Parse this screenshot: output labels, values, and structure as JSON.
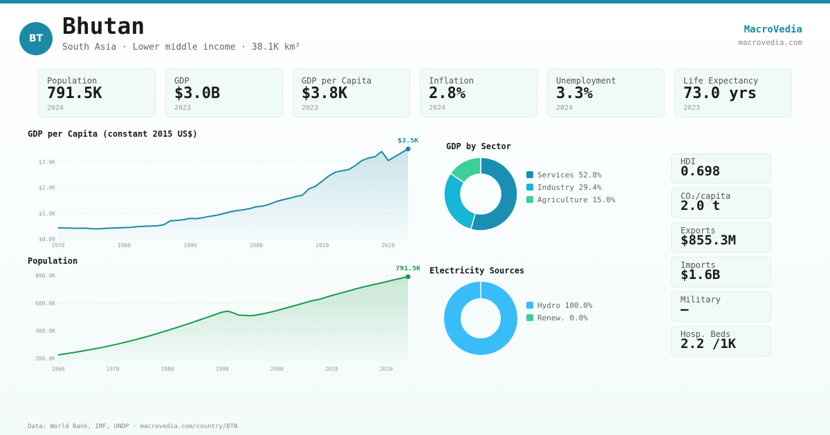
{
  "header": {
    "badge": "BT",
    "country": "Bhutan",
    "subtitle": "South Asia · Lower middle income · 38.1K km²",
    "brand": "MacroVedia",
    "brand_url": "macrovedia.com"
  },
  "stats": [
    {
      "label": "Population",
      "value": "791.5K",
      "year": "2024"
    },
    {
      "label": "GDP",
      "value": "$3.0B",
      "year": "2023"
    },
    {
      "label": "GDP per Capita",
      "value": "$3.8K",
      "year": "2023"
    },
    {
      "label": "Inflation",
      "value": "2.8%",
      "year": "2024"
    },
    {
      "label": "Unemployment",
      "value": "3.3%",
      "year": "2024"
    },
    {
      "label": "Life Expectancy",
      "value": "73.0 yrs",
      "year": "2023"
    }
  ],
  "side_stats": [
    {
      "label": "HDI",
      "value": "0.698"
    },
    {
      "label": "CO₂/capita",
      "value": "2.0 t"
    },
    {
      "label": "Exports",
      "value": "$855.3M"
    },
    {
      "label": "Imports",
      "value": "$1.6B"
    },
    {
      "label": "Military",
      "value": "—"
    },
    {
      "label": "Hosp. Beds",
      "value": "2.2 /1K"
    }
  ],
  "footer": "Data: World Bank, IMF, UNDP · macrovedia.com/country/BTN",
  "chart_data": [
    {
      "type": "area",
      "title": "GDP per Capita (constant 2015 US$)",
      "color": "#1a8aa6",
      "end_label": "$3.5K",
      "ylim": [
        0,
        3600
      ],
      "yticks": [
        0,
        1000,
        2000,
        3000
      ],
      "ytick_labels": [
        "$0.00",
        "$1.0K",
        "$2.0K",
        "$3.0K"
      ],
      "xlim": [
        1970,
        2023
      ],
      "xticks": [
        1970,
        1980,
        1990,
        2000,
        2010,
        2020
      ],
      "xtick_labels": [
        "1970",
        "1980",
        "1990",
        "2000",
        "2010",
        "2020"
      ],
      "x": [
        1970,
        1971,
        1972,
        1973,
        1974,
        1975,
        1976,
        1977,
        1978,
        1979,
        1980,
        1981,
        1982,
        1983,
        1984,
        1985,
        1986,
        1987,
        1988,
        1989,
        1990,
        1991,
        1992,
        1993,
        1994,
        1995,
        1996,
        1997,
        1998,
        1999,
        2000,
        2001,
        2002,
        2003,
        2004,
        2005,
        2006,
        2007,
        2008,
        2009,
        2010,
        2011,
        2012,
        2013,
        2014,
        2015,
        2016,
        2017,
        2018,
        2019,
        2020,
        2021,
        2022,
        2023
      ],
      "y": [
        430,
        425,
        420,
        415,
        420,
        400,
        390,
        410,
        420,
        430,
        440,
        450,
        480,
        490,
        500,
        510,
        550,
        700,
        720,
        750,
        800,
        790,
        830,
        880,
        920,
        980,
        1050,
        1100,
        1130,
        1180,
        1250,
        1280,
        1350,
        1450,
        1520,
        1580,
        1650,
        1700,
        1950,
        2050,
        2250,
        2450,
        2600,
        2650,
        2700,
        2850,
        3050,
        3150,
        3200,
        3400,
        3050,
        3200,
        3350,
        3500
      ]
    },
    {
      "type": "area",
      "title": "Population",
      "color": "#1a9a4a",
      "end_label": "791.5K",
      "ylim": [
        170000,
        810000
      ],
      "yticks": [
        200000,
        400000,
        600000,
        800000
      ],
      "ytick_labels": [
        "200.0K",
        "400.0K",
        "600.0K",
        "800.0K"
      ],
      "xlim": [
        1960,
        2024
      ],
      "xticks": [
        1960,
        1970,
        1980,
        1990,
        2000,
        2010,
        2020
      ],
      "xtick_labels": [
        "1960",
        "1970",
        "1980",
        "1990",
        "2000",
        "2010",
        "2020"
      ],
      "x": [
        1960,
        1962,
        1964,
        1966,
        1968,
        1970,
        1972,
        1974,
        1976,
        1978,
        1980,
        1982,
        1984,
        1986,
        1988,
        1990,
        1991,
        1992,
        1993,
        1994,
        1995,
        1996,
        1998,
        2000,
        2002,
        2004,
        2006,
        2008,
        2010,
        2012,
        2014,
        2016,
        2018,
        2020,
        2022,
        2024
      ],
      "y": [
        225000,
        237000,
        250000,
        264000,
        279000,
        296000,
        314000,
        334000,
        355000,
        378000,
        402000,
        427000,
        453000,
        480000,
        507000,
        535000,
        542000,
        530000,
        513000,
        512000,
        509000,
        512000,
        527000,
        546000,
        568000,
        590000,
        613000,
        630000,
        655000,
        676000,
        698000,
        719000,
        737000,
        755000,
        774000,
        791500
      ]
    },
    {
      "type": "pie",
      "title": "GDP by Sector",
      "labels": [
        "Services",
        "Industry",
        "Agriculture"
      ],
      "values": [
        52.8,
        29.4,
        15.0
      ],
      "display": [
        "52.8%",
        "29.4%",
        "15.0%"
      ],
      "colors": [
        "#1a8fb3",
        "#17b5d6",
        "#3ccf9a"
      ]
    },
    {
      "type": "pie",
      "title": "Electricity Sources",
      "labels": [
        "Hydro",
        "Renew."
      ],
      "values": [
        100.0,
        0.0
      ],
      "display": [
        "100.0%",
        "0.0%"
      ],
      "colors": [
        "#38bdf8",
        "#3ccf9a"
      ]
    }
  ]
}
